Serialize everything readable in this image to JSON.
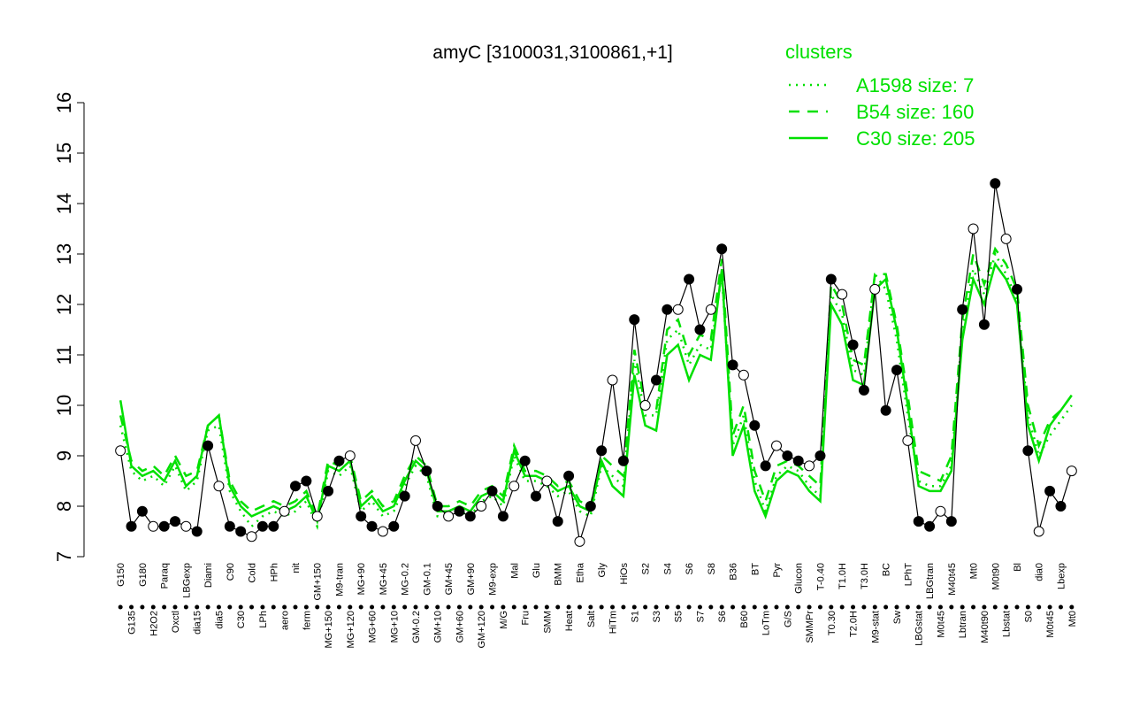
{
  "chart_data": {
    "type": "line",
    "title": "amyC [3100031,3100861,+1]",
    "legend_title": "clusters",
    "legend": "top-right",
    "categories": [
      "G150",
      "G135",
      "G180",
      "H2O2",
      "Paraq",
      "Oxctl",
      "LBGexp",
      "dia15",
      "Diami",
      "dia5",
      "C90",
      "C30",
      "Cold",
      "LPh",
      "HPh",
      "aero",
      "nit",
      "ferm",
      "GM+150",
      "MG+150",
      "M9-tran",
      "MG+120",
      "MG+90",
      "MG+60",
      "MG+45",
      "MG+10",
      "MG-0.2",
      "GM-0.2",
      "GM-0.1",
      "GM+10",
      "GM+45",
      "GM+60",
      "GM+90",
      "GM+120",
      "M9-exp",
      "M/G",
      "Mal",
      "Fru",
      "Glu",
      "SMM",
      "BMM",
      "Heat",
      "Etha",
      "Salt",
      "Gly",
      "HiTm",
      "HiOs",
      "S1",
      "S2",
      "S3",
      "S4",
      "S5",
      "S6",
      "S7",
      "S8",
      "S6",
      "B36",
      "B60",
      "BT",
      "LoTm",
      "Pyr",
      "G/S",
      "Glucon",
      "SMMPr",
      "T-0.40",
      "T0.30",
      "T1.0H",
      "T2.0H",
      "T3.0H",
      "M9-stat",
      "BC",
      "Sw",
      "LPhT",
      "LBGstat",
      "LBGtran",
      "M0t45",
      "M40t45",
      "Lbtran",
      "Mt0",
      "M40t90",
      "M0t90",
      "Lbstat",
      "Bl",
      "S0",
      "dia0",
      "M0t45",
      "Lbexp",
      "Mt0"
    ],
    "values": [
      9.1,
      7.6,
      7.9,
      7.6,
      7.6,
      7.7,
      7.6,
      7.5,
      9.2,
      8.4,
      7.6,
      7.5,
      7.4,
      7.6,
      7.6,
      7.9,
      8.4,
      8.5,
      7.8,
      8.3,
      8.9,
      9.0,
      7.8,
      7.6,
      7.5,
      7.6,
      8.2,
      9.3,
      8.7,
      8.0,
      7.8,
      7.9,
      7.8,
      8.0,
      8.3,
      7.8,
      8.4,
      8.9,
      8.2,
      8.5,
      7.7,
      8.6,
      7.3,
      8.0,
      9.1,
      10.5,
      8.9,
      11.7,
      10.0,
      10.5,
      11.9,
      11.9,
      12.5,
      11.5,
      11.9,
      13.1,
      10.8,
      10.6,
      9.6,
      8.8,
      9.2,
      9.0,
      8.9,
      8.8,
      9.0,
      12.5,
      12.2,
      11.2,
      10.3,
      12.3,
      9.9,
      10.7,
      9.3,
      7.7,
      7.6,
      7.9,
      7.7,
      11.9,
      13.5,
      11.6,
      14.4,
      13.3,
      12.3,
      9.1,
      7.5,
      8.3,
      8.0,
      8.7
    ],
    "color": "#000000",
    "series": [
      {
        "name": "A1598 size: 7",
        "color": "#00e000",
        "style": "dotted",
        "values": [
          9.6,
          8.7,
          8.5,
          8.6,
          8.4,
          8.8,
          8.3,
          8.5,
          9.5,
          9.6,
          8.3,
          7.9,
          7.6,
          7.8,
          7.9,
          7.8,
          7.9,
          8.1,
          7.6,
          8.7,
          8.6,
          8.8,
          7.9,
          8.1,
          7.8,
          7.9,
          8.4,
          8.8,
          8.6,
          7.8,
          7.8,
          7.9,
          7.8,
          8.1,
          8.2,
          8.0,
          9.0,
          8.5,
          8.5,
          8.4,
          8.2,
          8.3,
          7.9,
          7.8,
          8.8,
          8.6,
          8.4,
          10.9,
          9.8,
          9.8,
          11.3,
          11.5,
          10.8,
          11.2,
          11.1,
          12.6,
          9.2,
          9.8,
          8.5,
          7.9,
          8.6,
          8.8,
          8.7,
          8.4,
          8.2,
          12.2,
          11.8,
          10.7,
          10.6,
          12.6,
          12.3,
          11.3,
          9.8,
          8.5,
          8.4,
          8.4,
          8.8,
          11.5,
          12.7,
          12.2,
          13.0,
          12.6,
          12.1,
          9.8,
          9.0,
          9.4,
          9.7,
          10.0
        ]
      },
      {
        "name": "B54 size: 160",
        "color": "#00e000",
        "style": "dashed",
        "values": [
          9.8,
          8.9,
          8.7,
          8.8,
          8.6,
          9.0,
          8.6,
          8.7,
          9.6,
          9.8,
          8.5,
          8.1,
          7.9,
          8.0,
          8.1,
          8.0,
          8.1,
          8.3,
          7.8,
          8.9,
          8.8,
          9.0,
          8.1,
          8.3,
          8.0,
          8.1,
          8.6,
          9.0,
          8.8,
          8.0,
          8.0,
          8.1,
          8.0,
          8.3,
          8.4,
          8.2,
          9.2,
          8.7,
          8.7,
          8.6,
          8.4,
          8.5,
          8.1,
          8.0,
          9.0,
          8.8,
          8.6,
          11.1,
          10.0,
          9.9,
          11.5,
          11.7,
          11.0,
          11.4,
          11.3,
          12.9,
          9.4,
          10.0,
          8.7,
          8.1,
          8.8,
          8.9,
          8.8,
          8.6,
          8.4,
          12.4,
          12.0,
          10.9,
          10.8,
          12.6,
          12.6,
          11.6,
          10.2,
          8.7,
          8.6,
          8.5,
          9.0,
          11.7,
          13.0,
          12.4,
          13.1,
          12.8,
          12.3,
          10.0,
          9.2,
          9.7,
          9.9,
          10.2
        ]
      },
      {
        "name": "C30 size: 205",
        "color": "#00e000",
        "style": "solid",
        "values": [
          10.1,
          8.8,
          8.6,
          8.7,
          8.5,
          8.9,
          8.4,
          8.6,
          9.6,
          9.8,
          8.4,
          8.0,
          7.8,
          7.9,
          8.0,
          7.9,
          8.0,
          8.2,
          7.7,
          8.8,
          8.7,
          8.9,
          8.0,
          8.2,
          7.9,
          8.0,
          8.5,
          8.9,
          8.7,
          7.9,
          7.9,
          8.0,
          7.9,
          8.2,
          8.3,
          8.1,
          9.1,
          8.6,
          8.6,
          8.5,
          8.3,
          8.4,
          8.0,
          7.9,
          8.9,
          8.4,
          8.2,
          10.6,
          9.6,
          9.5,
          11.0,
          11.2,
          10.5,
          11.0,
          10.9,
          12.7,
          9.0,
          9.6,
          8.3,
          7.8,
          8.5,
          8.7,
          8.6,
          8.3,
          8.1,
          12.0,
          11.6,
          10.5,
          10.4,
          12.3,
          12.5,
          11.5,
          10.0,
          8.4,
          8.3,
          8.3,
          8.7,
          11.3,
          12.5,
          12.0,
          12.8,
          12.5,
          12.0,
          9.6,
          8.9,
          9.6,
          9.9,
          10.2
        ]
      }
    ],
    "ylim": [
      7,
      16
    ],
    "yticks": [
      7,
      8,
      9,
      10,
      11,
      12,
      13,
      14,
      15,
      16
    ]
  }
}
